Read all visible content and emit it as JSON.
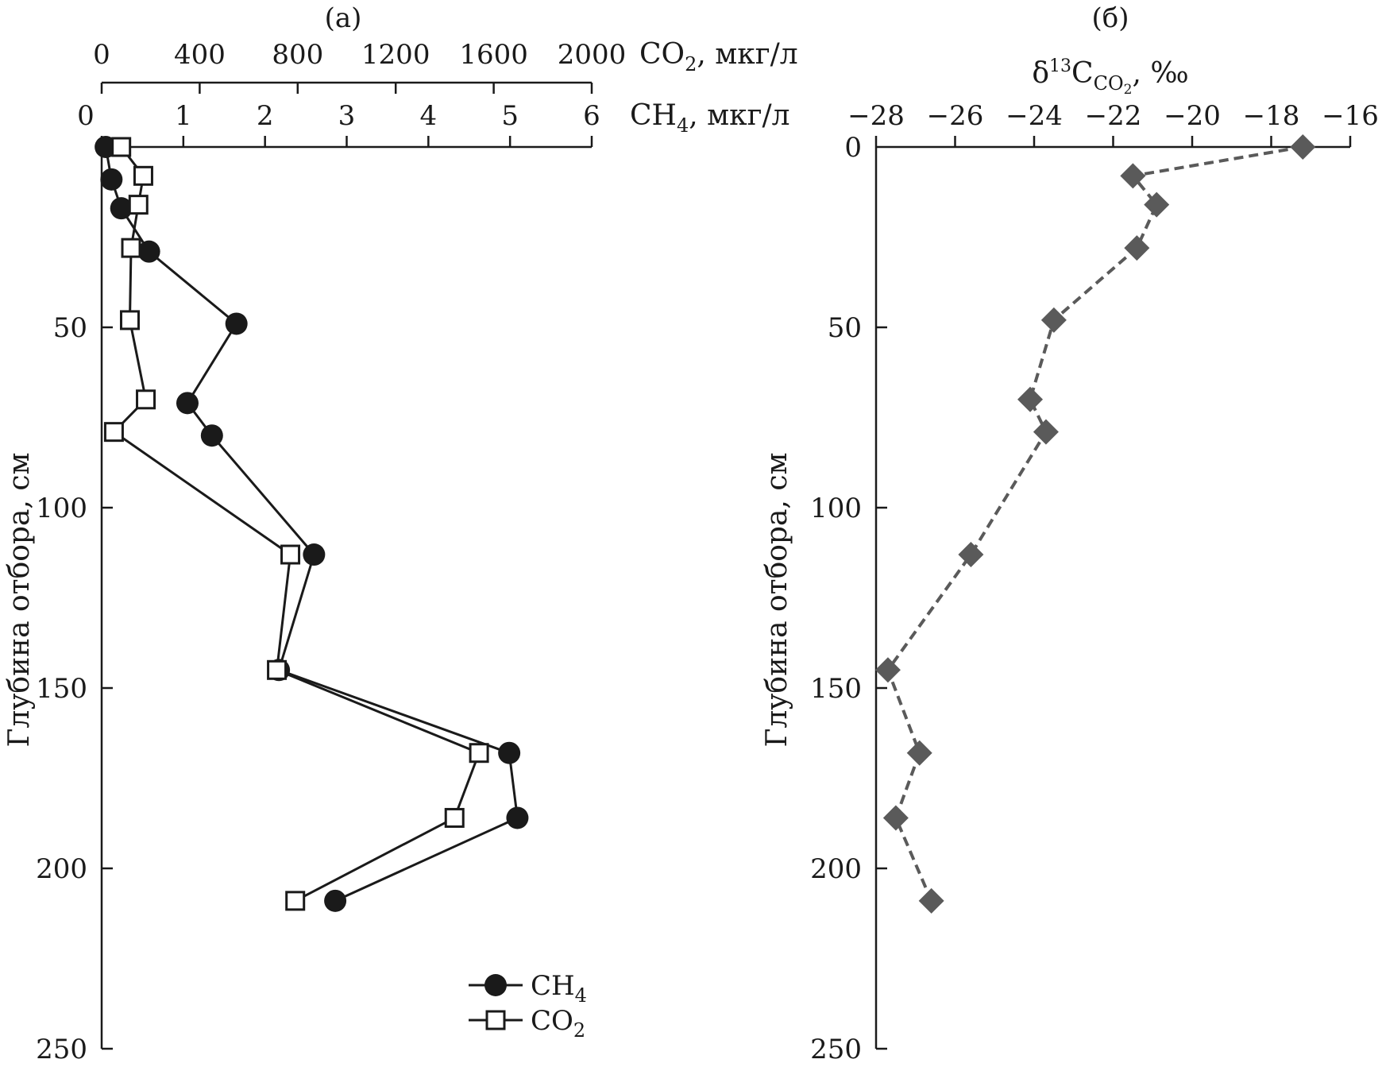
{
  "chart_data": [
    {
      "panel_label": "(а)",
      "type": "line",
      "x_axes": [
        {
          "quantity": "CO2",
          "title_main": "CO",
          "title_sub": "2",
          "title_rest": ", мкг/л",
          "range": [
            0,
            2000
          ],
          "ticks": [
            0,
            400,
            800,
            1200,
            1600,
            2000
          ],
          "tick_labels": [
            "0",
            "400",
            "800",
            "1200",
            "1600",
            "2000"
          ]
        },
        {
          "quantity": "CH4",
          "title_main": "CH",
          "title_sub": "4",
          "title_rest": ", мкг/л",
          "range": [
            0,
            6
          ],
          "ticks": [
            0,
            1,
            2,
            3,
            4,
            5,
            6
          ],
          "tick_labels": [
            "0",
            "1",
            "2",
            "3",
            "4",
            "5",
            "6"
          ]
        }
      ],
      "y_axis": {
        "title": "Глубина отбора, см",
        "range": [
          0,
          250
        ],
        "inverted": true,
        "ticks": [
          50,
          100,
          150,
          200,
          250
        ],
        "tick_labels": [
          "50",
          "100",
          "150",
          "200",
          "250"
        ]
      },
      "series": [
        {
          "name_main": "CH",
          "name_sub": "4",
          "axis": "CH4",
          "marker": "circle-filled",
          "line": "solid",
          "points": [
            {
              "x": 0.05,
              "y": 0
            },
            {
              "x": 0.12,
              "y": 9
            },
            {
              "x": 0.24,
              "y": 17
            },
            {
              "x": 0.58,
              "y": 29
            },
            {
              "x": 1.65,
              "y": 49
            },
            {
              "x": 1.05,
              "y": 71
            },
            {
              "x": 1.35,
              "y": 80
            },
            {
              "x": 2.6,
              "y": 113
            },
            {
              "x": 2.17,
              "y": 145
            },
            {
              "x": 4.99,
              "y": 168
            },
            {
              "x": 5.09,
              "y": 186
            },
            {
              "x": 2.86,
              "y": 209
            }
          ]
        },
        {
          "name_main": "CO",
          "name_sub": "2",
          "axis": "CO2",
          "marker": "square-open",
          "line": "solid",
          "points": [
            {
              "x": 80,
              "y": 0
            },
            {
              "x": 170,
              "y": 8
            },
            {
              "x": 150,
              "y": 16
            },
            {
              "x": 120,
              "y": 28
            },
            {
              "x": 115,
              "y": 48
            },
            {
              "x": 180,
              "y": 70
            },
            {
              "x": 50,
              "y": 79
            },
            {
              "x": 770,
              "y": 113
            },
            {
              "x": 715,
              "y": 145
            },
            {
              "x": 1540,
              "y": 168
            },
            {
              "x": 1440,
              "y": 186
            },
            {
              "x": 790,
              "y": 209
            }
          ]
        }
      ]
    },
    {
      "panel_label": "(б)",
      "type": "line",
      "x_axis": {
        "title_delta": "δ",
        "title_sup": "13",
        "title_main": "C",
        "title_sub": "CO",
        "title_subsub": "2",
        "title_rest": ", ‰",
        "range": [
          -28,
          -16
        ],
        "ticks": [
          -28,
          -26,
          -24,
          -22,
          -20,
          -18,
          -16
        ],
        "tick_labels": [
          "−28",
          "−26",
          "−24",
          "−22",
          "−20",
          "−18",
          "−16"
        ]
      },
      "y_axis": {
        "title": "Глубина отбора, см",
        "range": [
          0,
          250
        ],
        "inverted": true,
        "ticks": [
          0,
          50,
          100,
          150,
          200,
          250
        ],
        "tick_labels": [
          "0",
          "50",
          "100",
          "150",
          "200",
          "250"
        ]
      },
      "series": [
        {
          "axis": "d13C",
          "marker": "diamond-filled",
          "line": "dashed",
          "color": "#5a5a5a",
          "points": [
            {
              "x": -17.2,
              "y": 0
            },
            {
              "x": -21.5,
              "y": 8
            },
            {
              "x": -20.9,
              "y": 16
            },
            {
              "x": -21.4,
              "y": 28
            },
            {
              "x": -23.5,
              "y": 48
            },
            {
              "x": -24.1,
              "y": 70
            },
            {
              "x": -23.7,
              "y": 79
            },
            {
              "x": -25.6,
              "y": 113
            },
            {
              "x": -27.7,
              "y": 145
            },
            {
              "x": -26.9,
              "y": 168
            },
            {
              "x": -27.5,
              "y": 186
            },
            {
              "x": -26.6,
              "y": 209
            }
          ]
        }
      ]
    }
  ]
}
